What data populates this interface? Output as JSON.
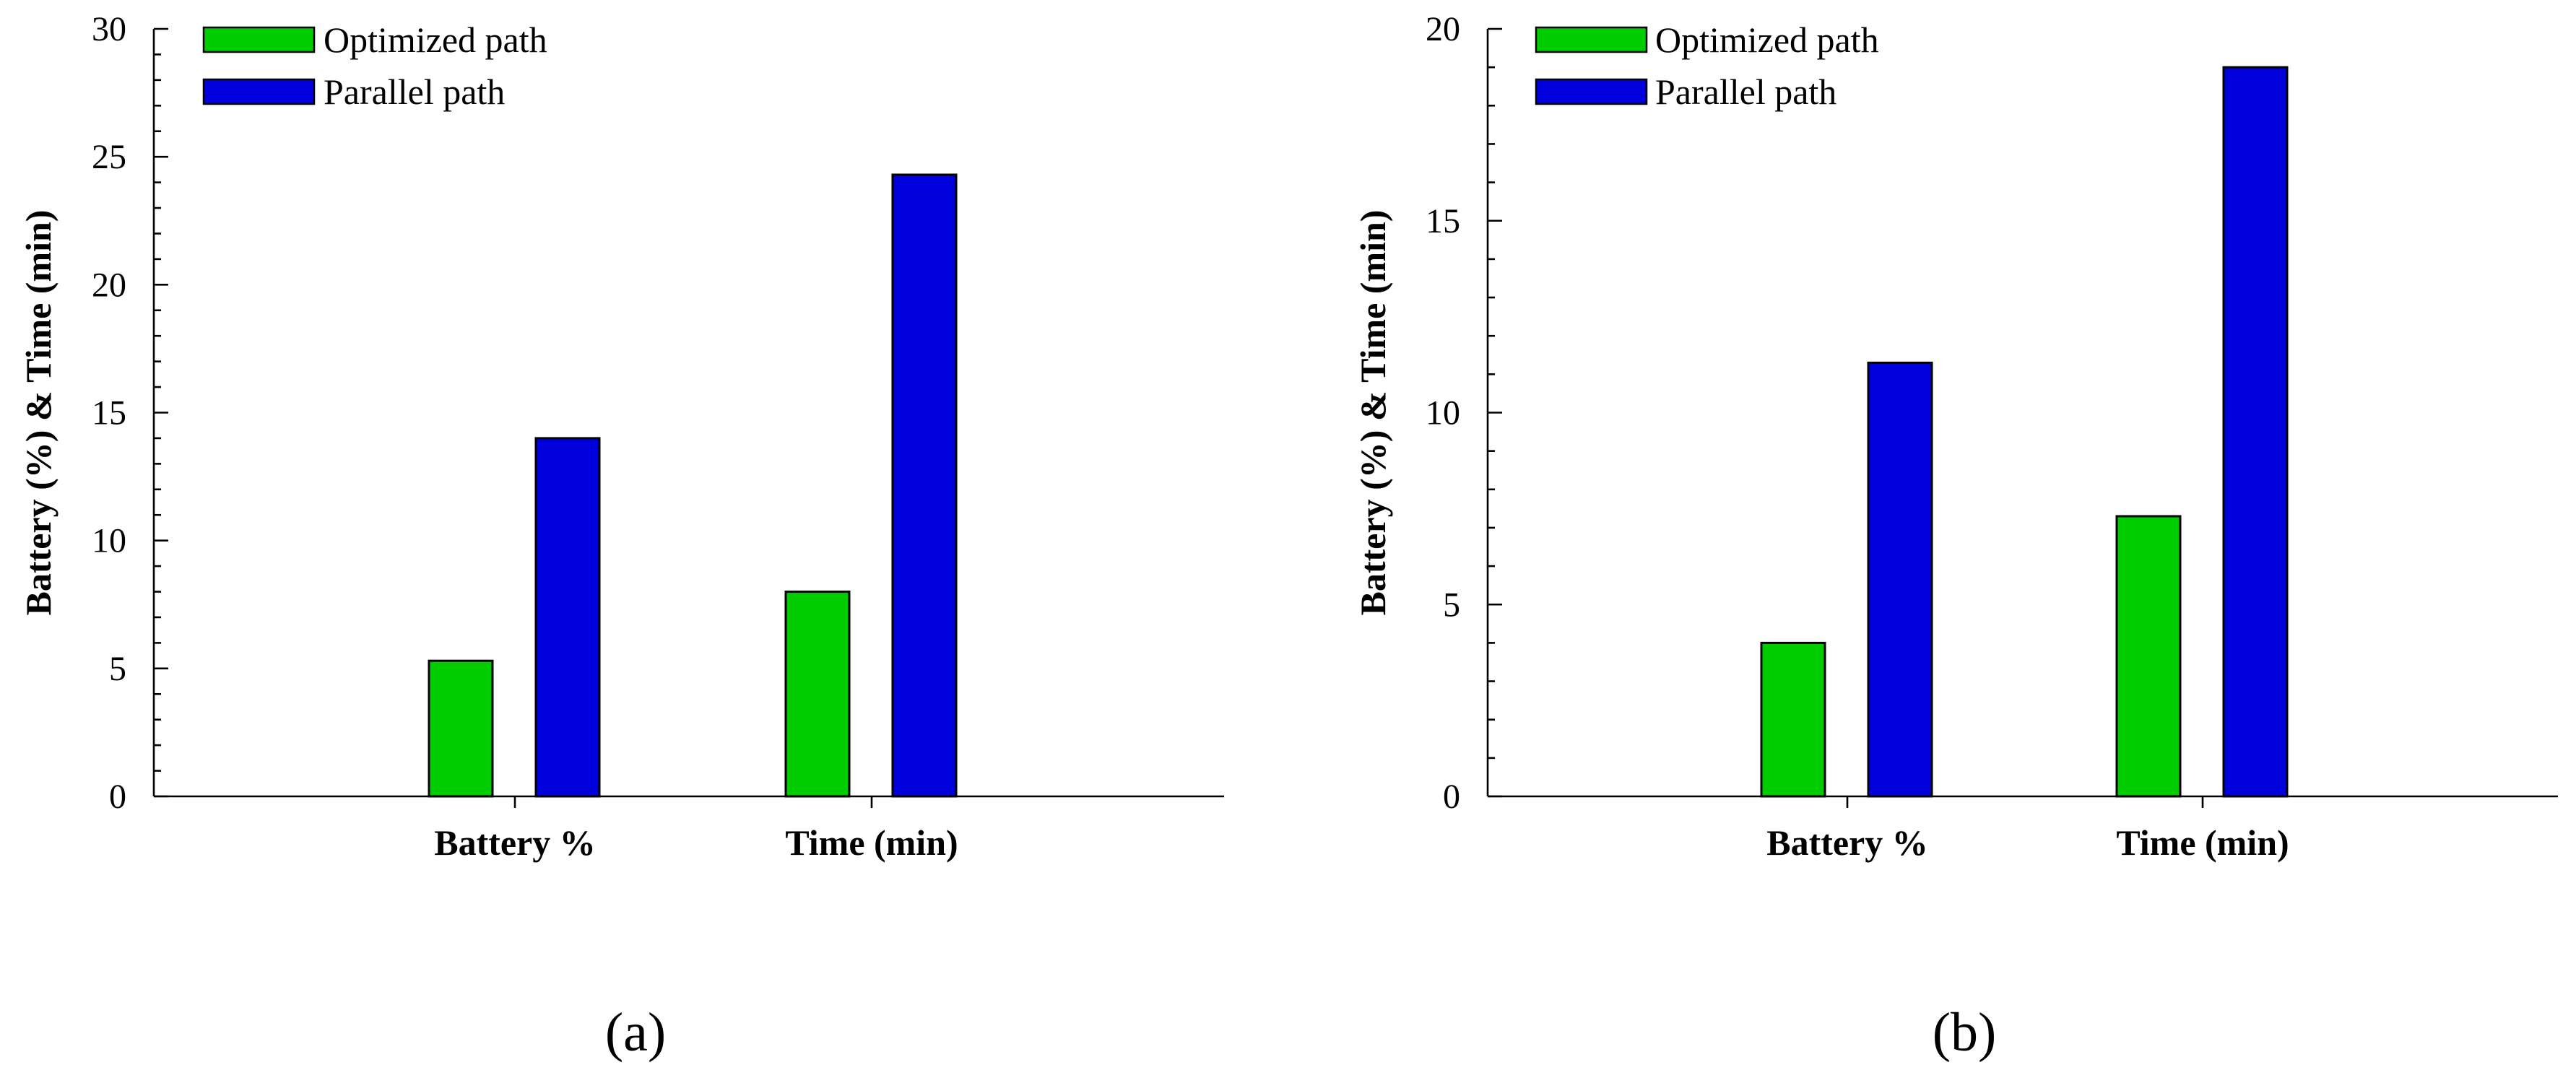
{
  "chart_data": [
    {
      "type": "bar",
      "panel_label": "(a)",
      "categories": [
        "Battery %",
        "Time (min)"
      ],
      "series": [
        {
          "name": "Optimized path",
          "color": "#00CC00",
          "values": [
            5.3,
            8.0
          ]
        },
        {
          "name": "Parallel path",
          "color": "#0000DD",
          "values": [
            14.0,
            24.3
          ]
        }
      ],
      "xlabel": "",
      "ylabel": "Battery (%) & Time (min)",
      "ylim": [
        0,
        30
      ],
      "yticks": [
        0,
        5,
        10,
        15,
        20,
        25,
        30
      ],
      "minor_tick_step": 1,
      "legend_position": "top-left",
      "grid": false
    },
    {
      "type": "bar",
      "panel_label": "(b)",
      "categories": [
        "Battery %",
        "Time (min)"
      ],
      "series": [
        {
          "name": "Optimized path",
          "color": "#00CC00",
          "values": [
            4.0,
            7.3
          ]
        },
        {
          "name": "Parallel path",
          "color": "#0000DD",
          "values": [
            11.3,
            19.0
          ]
        }
      ],
      "xlabel": "",
      "ylabel": "Battery (%) & Time (min)",
      "ylim": [
        0,
        20
      ],
      "yticks": [
        0,
        5,
        10,
        15,
        20
      ],
      "minor_tick_step": 1,
      "legend_position": "top-left",
      "grid": false
    }
  ]
}
